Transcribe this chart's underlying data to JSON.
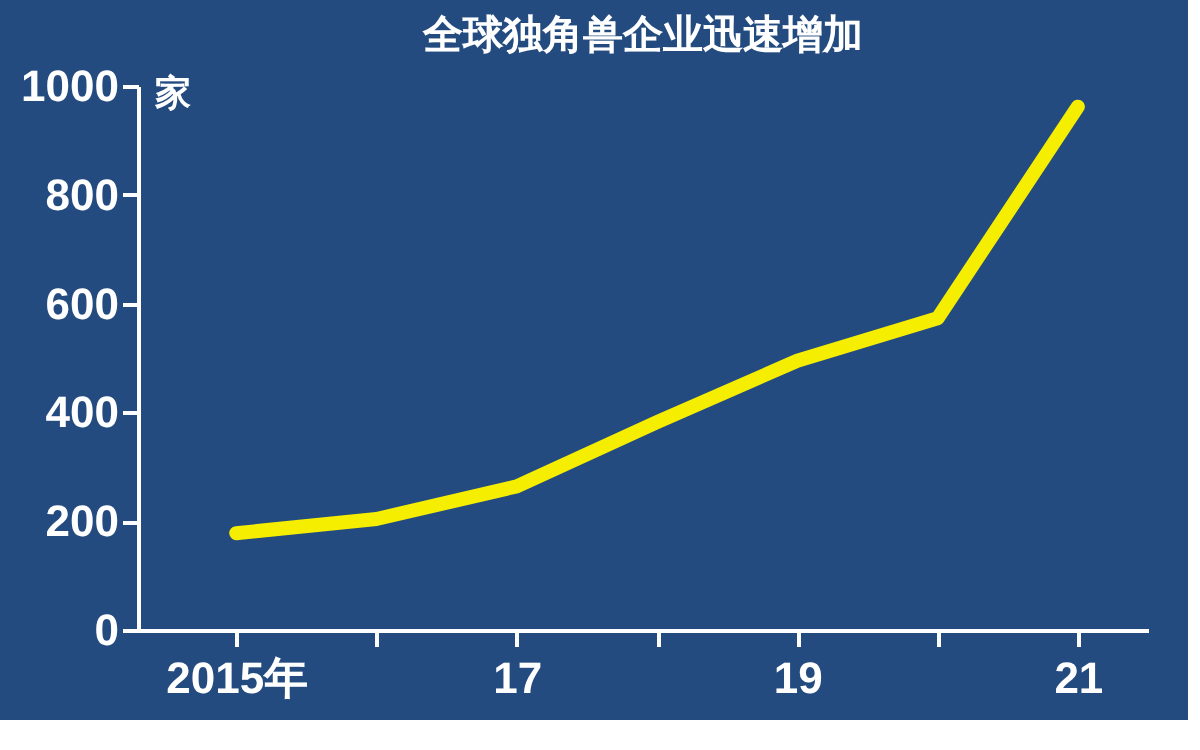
{
  "chart_data": {
    "type": "line",
    "title": "全球独角兽企业迅速增加",
    "ylabel": "家",
    "x": [
      2015,
      2016,
      2017,
      2018,
      2019,
      2020,
      2021
    ],
    "series": [
      {
        "color": "#f5ee00",
        "values": [
          178,
          204,
          264,
          382,
          495,
          573,
          962
        ]
      }
    ],
    "xlim": [
      2014.3,
      2021.5
    ],
    "xticks": [
      {
        "value": 2015,
        "label": "2015年"
      },
      {
        "value": 2016,
        "label": null
      },
      {
        "value": 2017,
        "label": "17"
      },
      {
        "value": 2018,
        "label": null
      },
      {
        "value": 2019,
        "label": "19"
      },
      {
        "value": 2020,
        "label": null
      },
      {
        "value": 2021,
        "label": "21"
      }
    ],
    "ylim": [
      0,
      1000
    ],
    "yticks": [
      0,
      200,
      400,
      600,
      800,
      1000
    ],
    "grid": false,
    "legend": false,
    "line_style": "solid"
  }
}
